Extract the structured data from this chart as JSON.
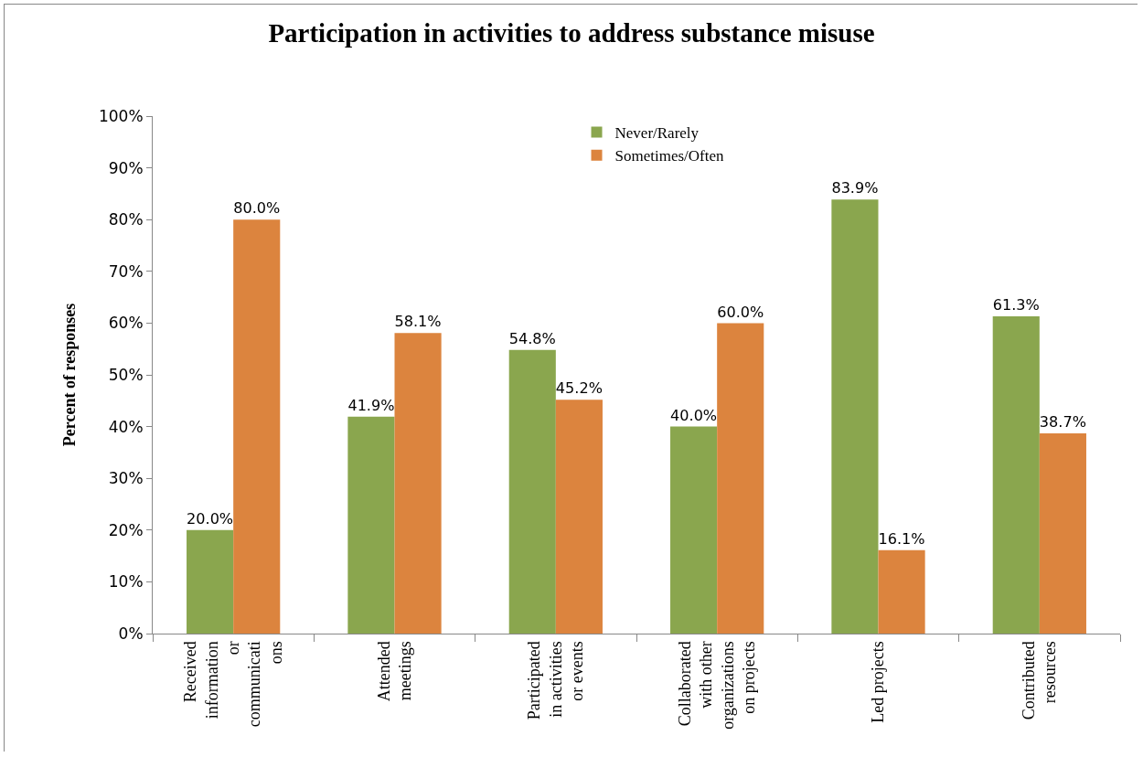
{
  "chart_data": {
    "type": "bar",
    "title": "Participation in activities to address substance misuse",
    "ylabel": "Percent of responses",
    "categories": [
      "Received\ninformation\nor\ncommunicati\nons",
      "Attended\nmeetings",
      "Participated\nin activities\nor events",
      "Collaborated\nwith other\norganizations\non projects",
      "Led projects",
      "Contributed\nresources"
    ],
    "series": [
      {
        "name": "Never/Rarely",
        "color": "#8aa64e",
        "values": [
          20.0,
          41.9,
          54.8,
          40.0,
          83.9,
          61.3
        ],
        "value_labels": [
          "20.0%",
          "41.9%",
          "54.8%",
          "40.0%",
          "83.9%",
          "61.3%"
        ]
      },
      {
        "name": "Sometimes/Often",
        "color": "#dc843e",
        "values": [
          80.0,
          58.1,
          45.2,
          60.0,
          16.1,
          38.7
        ],
        "value_labels": [
          "80.0%",
          "58.1%",
          "45.2%",
          "60.0%",
          "16.1%",
          "38.7%"
        ]
      }
    ],
    "ylim": [
      0,
      100
    ],
    "yticks": [
      {
        "value": 0,
        "label": "0%"
      },
      {
        "value": 10,
        "label": "10%"
      },
      {
        "value": 20,
        "label": "20%"
      },
      {
        "value": 30,
        "label": "30%"
      },
      {
        "value": 40,
        "label": "40%"
      },
      {
        "value": 50,
        "label": "50%"
      },
      {
        "value": 60,
        "label": "60%"
      },
      {
        "value": 70,
        "label": "70%"
      },
      {
        "value": 80,
        "label": "80%"
      },
      {
        "value": 90,
        "label": "90%"
      },
      {
        "value": 100,
        "label": "100%"
      }
    ],
    "grid": false,
    "legend": "top"
  }
}
